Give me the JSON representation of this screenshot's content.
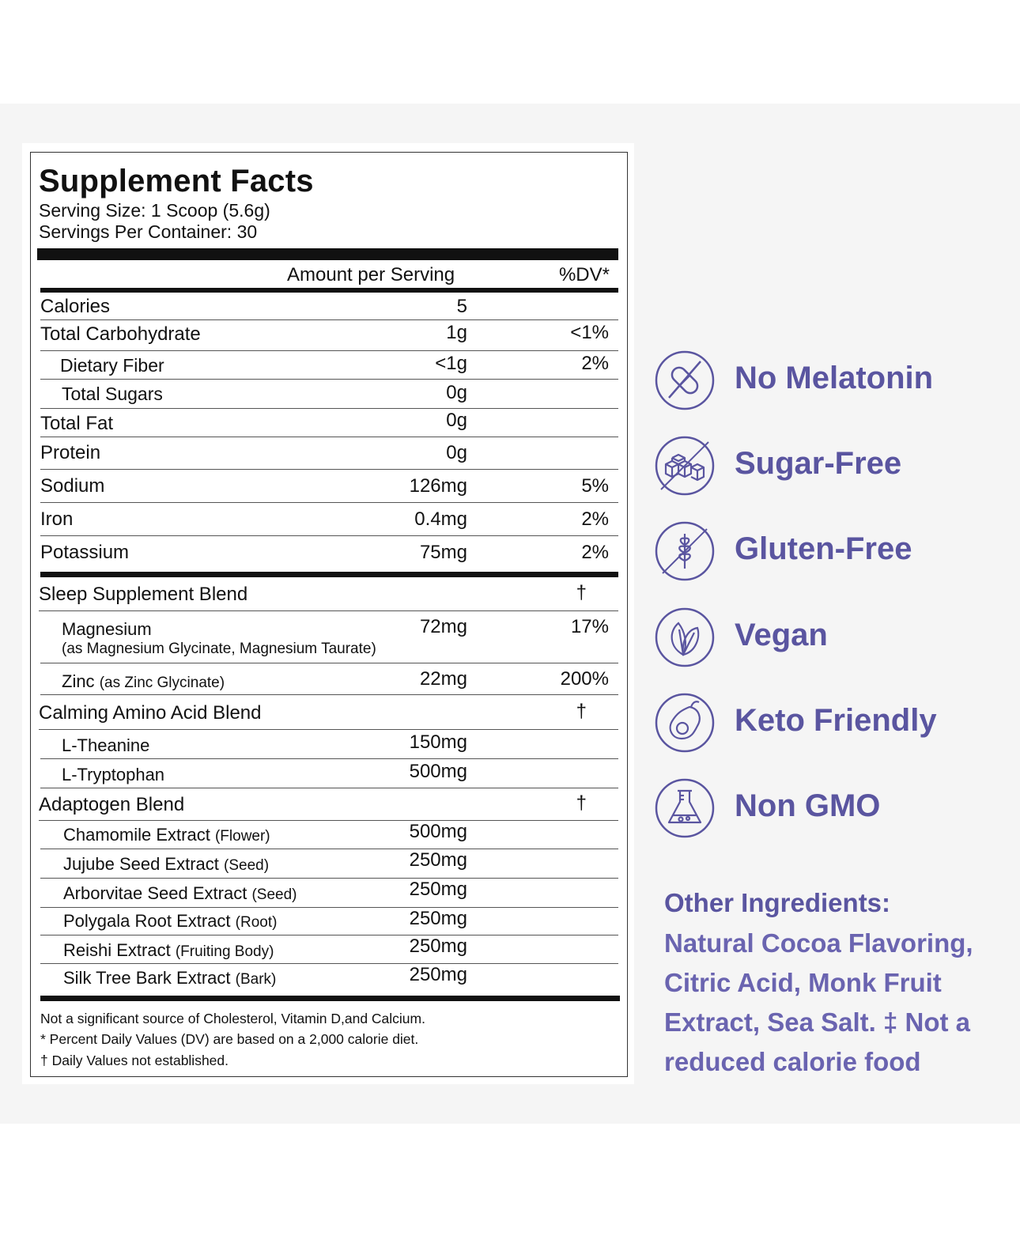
{
  "facts": {
    "title": "Supplement Facts",
    "serving_size": "Serving Size: 1 Scoop (5.6g)",
    "servings_per_container": "Servings Per Container: 30",
    "header_amount": "Amount per Serving",
    "header_dv": "%DV*",
    "rows": [
      {
        "name": "Calories",
        "amount": "5",
        "dv": ""
      },
      {
        "name": "Total Carbohydrate",
        "amount": "1g",
        "dv": "<1%"
      },
      {
        "name": "Dietary Fiber",
        "amount": "<1g",
        "dv": "2%"
      },
      {
        "name": "Total Sugars",
        "amount": "0g",
        "dv": ""
      },
      {
        "name": "Total Fat",
        "amount": "0g",
        "dv": ""
      },
      {
        "name": "Protein",
        "amount": "0g",
        "dv": ""
      },
      {
        "name": "Sodium",
        "amount": "126mg",
        "dv": "5%"
      },
      {
        "name": "Iron",
        "amount": "0.4mg",
        "dv": "2%"
      },
      {
        "name": "Potassium",
        "amount": "75mg",
        "dv": "2%"
      }
    ],
    "blends": {
      "sleep": {
        "name": "Sleep Supplement Blend",
        "dv": "†"
      },
      "magnesium": {
        "name": "Magnesium",
        "detail": "(as Magnesium Glycinate, Magnesium Taurate)",
        "amount": "72mg",
        "dv": "17%"
      },
      "zinc": {
        "name": "Zinc",
        "detail": "(as Zinc Glycinate)",
        "amount": "22mg",
        "dv": "200%"
      },
      "calming": {
        "name": "Calming Amino Acid Blend",
        "dv": "†"
      },
      "theanine": {
        "name": "L-Theanine",
        "amount": "150mg"
      },
      "tryptophan": {
        "name": "L-Tryptophan",
        "amount": "500mg"
      },
      "adaptogen": {
        "name": "Adaptogen Blend",
        "dv": "†"
      },
      "chamomile": {
        "name": "Chamomile Extract",
        "part": "(Flower)",
        "amount": "500mg"
      },
      "jujube": {
        "name": "Jujube Seed Extract",
        "part": "(Seed)",
        "amount": "250mg"
      },
      "arborvitae": {
        "name": "Arborvitae Seed Extract",
        "part": "(Seed)",
        "amount": "250mg"
      },
      "polygala": {
        "name": "Polygala Root Extract",
        "part": "(Root)",
        "amount": "250mg"
      },
      "reishi": {
        "name": "Reishi Extract",
        "part": "(Fruiting Body)",
        "amount": "250mg"
      },
      "silktree": {
        "name": "Silk Tree Bark Extract",
        "part": "(Bark)",
        "amount": "250mg"
      }
    },
    "footnotes": [
      "Not a significant source of Cholesterol, Vitamin D,and Calcium.",
      "* Percent Daily Values (DV) are based on a 2,000 calorie diet.",
      "† Daily Values not established."
    ]
  },
  "badges": [
    {
      "label": "No Melatonin",
      "icon": "capsule-crossed-icon"
    },
    {
      "label": "Sugar-Free",
      "icon": "sugar-cubes-crossed-icon"
    },
    {
      "label": "Gluten-Free",
      "icon": "wheat-crossed-icon"
    },
    {
      "label": "Vegan",
      "icon": "leaf-icon"
    },
    {
      "label": "Keto Friendly",
      "icon": "avocado-icon"
    },
    {
      "label": "Non GMO",
      "icon": "flask-icon"
    }
  ],
  "other_ingredients": {
    "title": "Other Ingredients:",
    "lines": [
      "Natural Cocoa Flavoring,",
      "Citric Acid, Monk Fruit",
      "Extract, Sea Salt. ‡ Not a",
      "reduced calorie food"
    ]
  },
  "colors": {
    "accent": "#5a55a0",
    "background": "#f5f5f5",
    "label_border": "#333333"
  }
}
